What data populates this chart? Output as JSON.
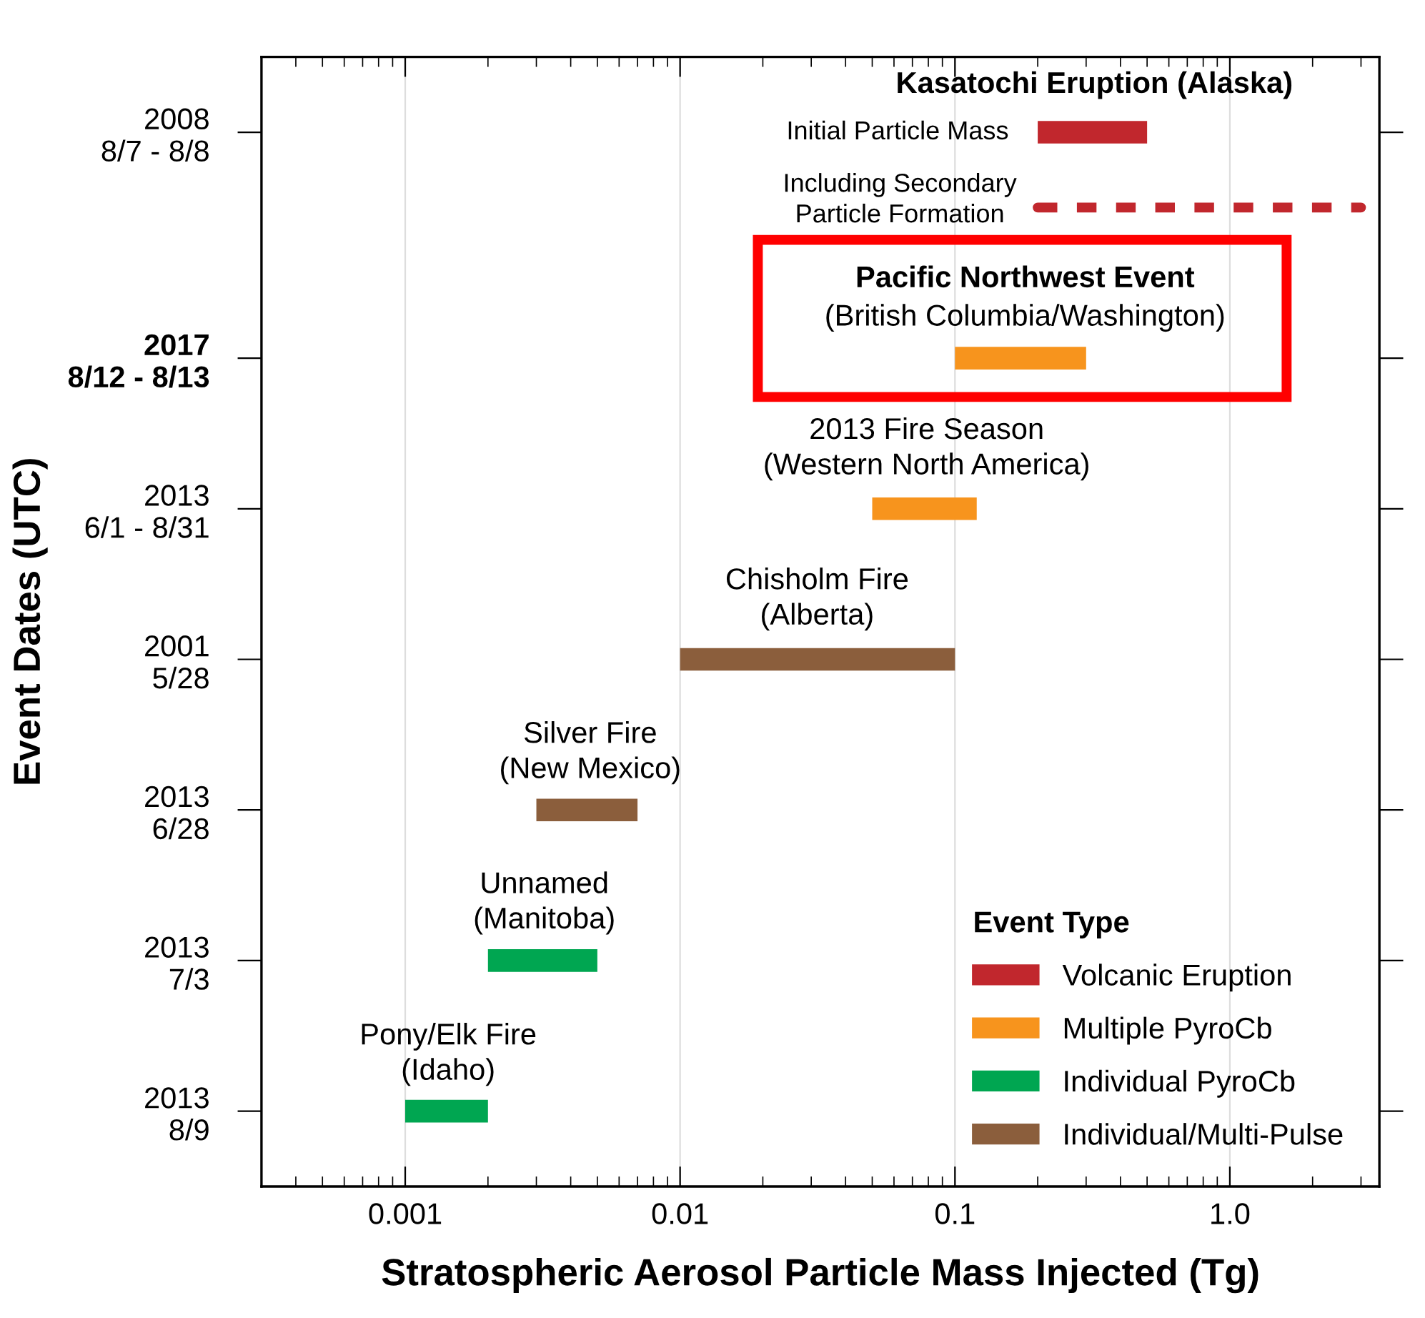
{
  "chart_data": {
    "type": "bar",
    "orientation": "horizontal",
    "xlabel": "Stratospheric Aerosol Particle Mass Injected (Tg)",
    "ylabel": "Event Dates (UTC)",
    "log": "x",
    "xlim": [
      0.0003,
      3.5
    ],
    "xticks": [
      0.001,
      0.01,
      0.1,
      {
        "value": 1,
        "label": "1.0"
      }
    ],
    "categories": [
      "2008\n8/7 - 8/8",
      null,
      null,
      "2017\n8/12 - 8/13",
      null,
      "2013\n6/1 - 8/31",
      null,
      "2001\n5/28",
      null,
      "2013\n6/28",
      null,
      "2013\n7/3",
      null,
      "2013\n8/9"
    ],
    "grid": "x",
    "legend": "bottom right",
    "legend_title": "Event Type",
    "series": [
      {
        "name": "Volcanic Eruption",
        "color": "#c1272d",
        "base": [
          0.2,
          null,
          null,
          null,
          null,
          null,
          null,
          null,
          null,
          null,
          null,
          null,
          null,
          null
        ],
        "values": [
          0.3,
          null,
          null,
          null,
          null,
          null,
          null,
          null,
          null,
          null,
          null,
          null,
          null,
          null
        ]
      },
      {
        "color": "#c1272d",
        "line_style": "dashed",
        "base": [
          null,
          0.2,
          null,
          null,
          null,
          null,
          null,
          null,
          null,
          null,
          null,
          null,
          null,
          null
        ],
        "values": [
          null,
          2.8,
          null,
          null,
          null,
          null,
          null,
          null,
          null,
          null,
          null,
          null,
          null,
          null
        ]
      },
      {
        "name": "Multiple PyroCb",
        "color": "#f7941d",
        "base": [
          null,
          null,
          null,
          0.1,
          null,
          0.05,
          null,
          null,
          null,
          null,
          null,
          null,
          null,
          null
        ],
        "values": [
          null,
          null,
          null,
          0.2,
          null,
          0.07,
          null,
          null,
          null,
          null,
          null,
          null,
          null,
          null
        ]
      },
      {
        "name": "Individual PyroCb",
        "color": "#00a651",
        "base": [
          null,
          null,
          null,
          null,
          null,
          null,
          null,
          null,
          null,
          null,
          null,
          0.002,
          null,
          0.001
        ],
        "values": [
          null,
          null,
          null,
          null,
          null,
          null,
          null,
          null,
          null,
          null,
          null,
          0.003,
          null,
          0.001
        ]
      },
      {
        "name": "Individual/Multi-Pulse",
        "color": "#8b5e3c",
        "base": [
          null,
          null,
          null,
          null,
          null,
          null,
          null,
          0.01,
          null,
          0.003,
          null,
          null,
          null,
          null
        ],
        "values": [
          null,
          null,
          null,
          null,
          null,
          null,
          null,
          0.09,
          null,
          0.004,
          null,
          null,
          null,
          null
        ]
      }
    ],
    "annotations": [
      "Kasatochi Eruption (Alaska)",
      "Initial Particle Mass",
      "Including Secondary\nParticle Formation",
      "Pacific Northwest Event",
      "(British Columbia/Washington)",
      "2013 Fire Season\n(Western North America)",
      "Chisholm Fire\n(Alberta)",
      "Silver Fire\n(New Mexico)",
      "Unnamed\n(Manitoba)",
      "Pony/Elk Fire\n(Idaho)"
    ]
  }
}
